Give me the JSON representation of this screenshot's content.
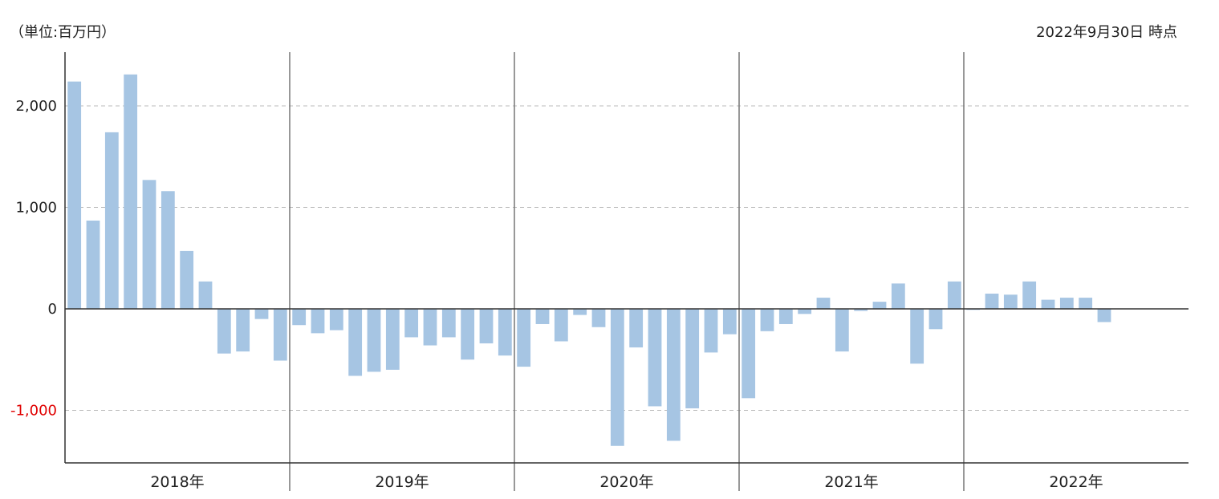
{
  "header": {
    "unit": "（単位:百万円）",
    "as_of": "2022年9月30日 時点"
  },
  "colors": {
    "bar": "#a6c5e3",
    "axis": "#333333",
    "grid": "#bbbbbb",
    "separator": "#777777",
    "negative_tick": "#e00000"
  },
  "chart_data": {
    "type": "bar",
    "title": "",
    "xlabel": "",
    "ylabel": "",
    "ylim": [
      -1500,
      2500
    ],
    "yticks": [
      {
        "value": 2000,
        "label": "2,000"
      },
      {
        "value": 1000,
        "label": "1,000"
      },
      {
        "value": 0,
        "label": "0"
      },
      {
        "value": -1000,
        "label": "-1,000"
      }
    ],
    "grid": true,
    "years": [
      {
        "label": "2018年",
        "values": [
          2240,
          870,
          1740,
          2310,
          1270,
          1160,
          570,
          270,
          -440,
          -420,
          -100,
          -510
        ]
      },
      {
        "label": "2019年",
        "values": [
          -160,
          -240,
          -210,
          -660,
          -620,
          -600,
          -280,
          -360,
          -280,
          -500,
          -340,
          -460
        ]
      },
      {
        "label": "2020年",
        "values": [
          -570,
          -150,
          -320,
          -60,
          -180,
          -1350,
          -380,
          -960,
          -1300,
          -980,
          -430,
          -250
        ]
      },
      {
        "label": "2021年",
        "values": [
          -880,
          -220,
          -150,
          -50,
          110,
          -420,
          -20,
          70,
          250,
          -540,
          -200,
          270
        ]
      },
      {
        "label": "2022年",
        "values": [
          -10,
          150,
          140,
          270,
          90,
          110,
          110,
          -130,
          null,
          null,
          null,
          null
        ]
      }
    ]
  }
}
